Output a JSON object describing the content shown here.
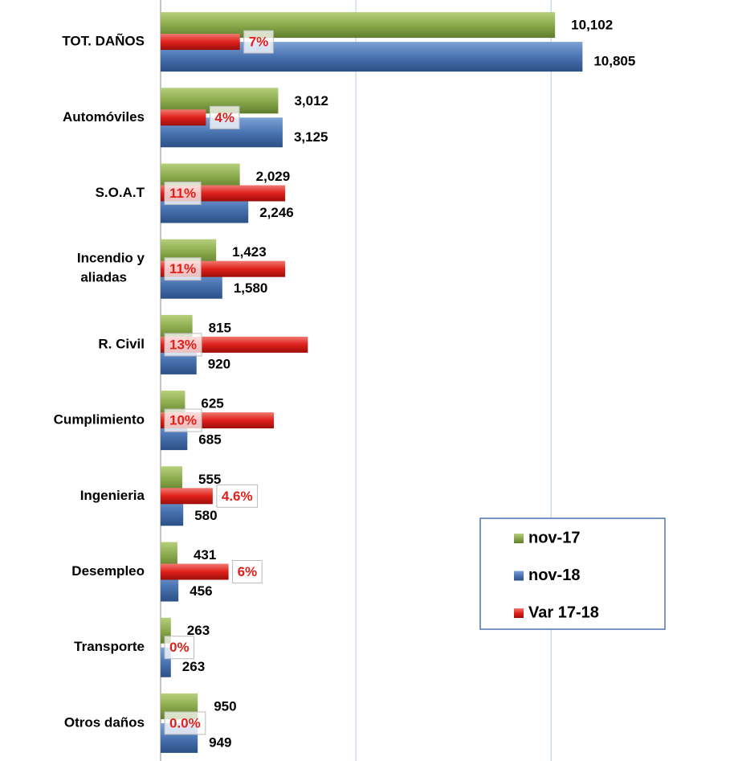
{
  "chart_data": {
    "type": "bar",
    "orientation": "horizontal",
    "categories": [
      "TOT. DAÑOS",
      "Automóviles",
      "S.O.A.T",
      "Incendio y aliadas",
      "R. Civil",
      "Cumplimiento",
      "Ingenieria",
      "Desempleo",
      "Transporte",
      "Otros daños"
    ],
    "series": [
      {
        "name": "nov-17",
        "color": "#8aaa4c",
        "values": [
          10102,
          3012,
          2029,
          1423,
          815,
          625,
          555,
          431,
          263,
          950
        ],
        "value_labels": [
          "10,102",
          "3,012",
          "2,029",
          "1,423",
          "815",
          "625",
          "555",
          "431",
          "263",
          "950"
        ]
      },
      {
        "name": "nov-18",
        "color": "#4a74b2",
        "values": [
          10805,
          3125,
          2246,
          1580,
          920,
          685,
          580,
          456,
          263,
          949
        ],
        "value_labels": [
          "10,805",
          "3,125",
          "2,246",
          "1,580",
          "920",
          "685",
          "580",
          "456",
          "263",
          "949"
        ]
      },
      {
        "name": "Var 17-18",
        "color": "#e0201b",
        "axis": "x2",
        "values": [
          7,
          4,
          11,
          11,
          13,
          10,
          4.6,
          6,
          0,
          0.0
        ],
        "value_labels": [
          "7%",
          "4%",
          "11%",
          "11%",
          "13%",
          "10%",
          "4.6%",
          "6%",
          "0%",
          "0.0%"
        ]
      }
    ],
    "xlim": [
      0,
      14500
    ],
    "xticks": [
      0,
      5000,
      10000
    ],
    "x2lim": [
      0,
      50
    ],
    "grid": true,
    "legend": "lower right"
  }
}
